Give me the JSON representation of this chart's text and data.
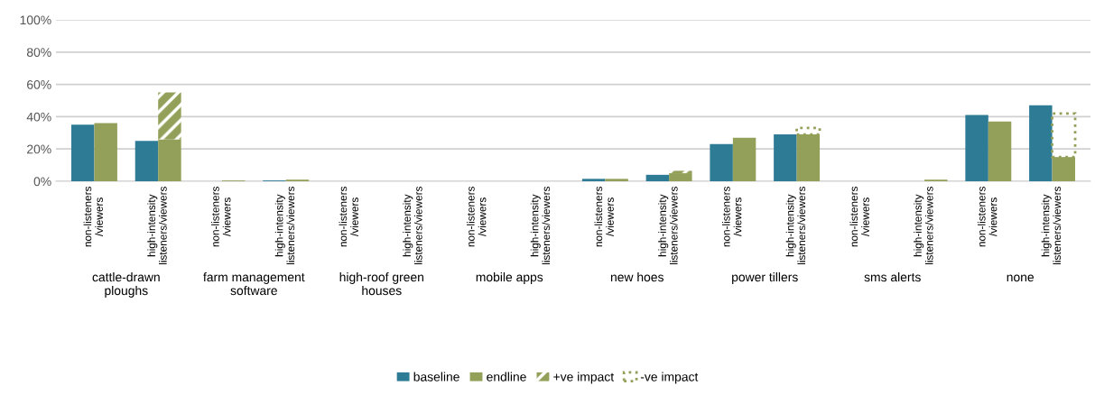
{
  "chart_data": {
    "type": "bar",
    "categories": [
      "non-listeners\n/viewers",
      "high-intensity\nlisteners/viewers",
      "non-listeners\n/viewers",
      "high-intensity\nlisteners/viewers",
      "non-listeners\n/viewers",
      "high-intensity\nlisteners/viewers",
      "non-listeners\n/viewers",
      "high-intensity\nlisteners/viewers",
      "non-listeners\n/viewers",
      "high-intensity\nlisteners/viewers",
      "non-listeners\n/viewers",
      "high-intensity\nlisteners/viewers",
      "non-listeners\n/viewers",
      "high-intensity\nlisteners/viewers",
      "non-listeners\n/viewers",
      "high-intensity\nlisteners/viewers"
    ],
    "annotations": [
      "cattle-drawn\nploughs",
      "farm management\nsoftware",
      "high-roof green\nhouses",
      "mobile apps",
      "new hoes",
      "power tillers",
      "sms alerts",
      "none"
    ],
    "series": [
      {
        "name": "baseline",
        "color": "#2e7b96",
        "values": [
          35,
          25,
          0,
          0.5,
          0,
          0,
          0,
          0,
          1.5,
          4,
          23,
          29,
          0,
          0,
          41,
          47
        ]
      },
      {
        "name": "endline",
        "color": "#93a05a",
        "values": [
          36,
          26,
          0.5,
          1,
          0,
          0,
          0,
          0,
          1.5,
          5,
          27,
          29,
          0,
          1,
          37,
          15
        ]
      },
      {
        "name": "+ve impact",
        "color": "#93a05a",
        "base": [
          null,
          26,
          null,
          null,
          null,
          null,
          null,
          null,
          null,
          5,
          null,
          null,
          null,
          null,
          null,
          null
        ],
        "values": [
          null,
          29,
          null,
          null,
          null,
          null,
          null,
          null,
          null,
          1.5,
          null,
          null,
          null,
          null,
          null,
          null
        ]
      },
      {
        "name": "-ve impact",
        "color": "#93a05a",
        "base": [
          null,
          null,
          null,
          null,
          null,
          null,
          null,
          null,
          null,
          null,
          null,
          29,
          null,
          null,
          null,
          15
        ],
        "values": [
          null,
          null,
          null,
          null,
          null,
          null,
          null,
          null,
          null,
          null,
          null,
          4,
          null,
          null,
          null,
          27
        ]
      }
    ],
    "ylim": [
      0,
      100
    ],
    "yticks": [
      {
        "value": 0,
        "label": "0%"
      },
      {
        "value": 20,
        "label": "20%"
      },
      {
        "value": 40,
        "label": "40%"
      },
      {
        "value": 60,
        "label": "60%"
      },
      {
        "value": 80,
        "label": "80%"
      },
      {
        "value": 100,
        "label": "100%"
      }
    ],
    "grid": "y",
    "legend": "bottom"
  }
}
